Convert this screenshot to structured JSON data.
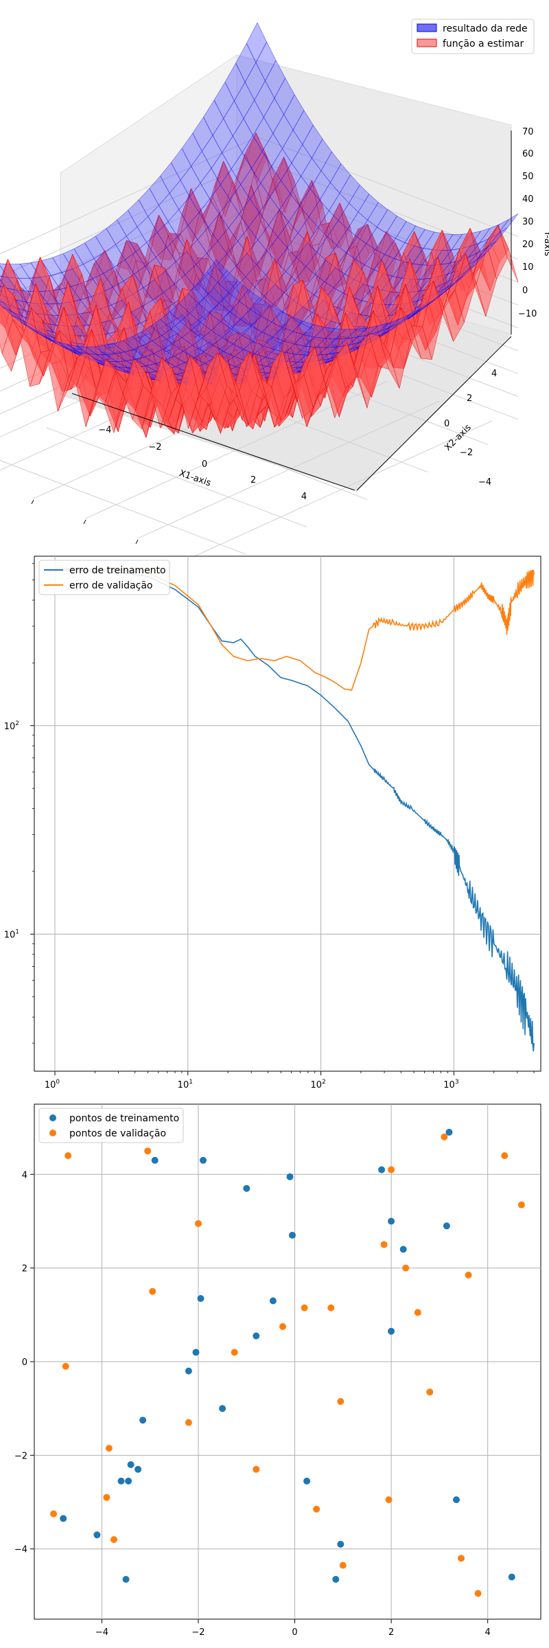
{
  "chart_data": [
    {
      "type": "surface",
      "legend": [
        "resultado da rede",
        "função a estimar"
      ],
      "legend_position": "top-right",
      "xlabel": "X1-axis",
      "ylabel": "X2-axis",
      "zlabel": "Y-axis",
      "xticks": [
        "−4",
        "−2",
        "0",
        "2",
        "4"
      ],
      "yticks": [
        "−4",
        "−2",
        "0",
        "2",
        "4"
      ],
      "zticks": [
        "−10",
        "0",
        "10",
        "20",
        "30",
        "40",
        "50",
        "60",
        "70"
      ],
      "xlim": [
        -5,
        5
      ],
      "ylim": [
        -5,
        5
      ],
      "zlim": [
        -15,
        72
      ],
      "colors": {
        "resultado da rede": "#0000ff",
        "função a estimar": "#ff0000"
      },
      "grid": true
    },
    {
      "type": "line",
      "xscale": "log",
      "yscale": "log",
      "xlim": [
        0.7,
        4500
      ],
      "ylim": [
        2.2,
        650
      ],
      "xticks": [
        1,
        10,
        100,
        1000
      ],
      "yticks": [
        10,
        100
      ],
      "legend_position": "top-left",
      "grid": true,
      "series": [
        {
          "name": "erro de treinamento",
          "color": "#1f77b4",
          "points": [
            [
              1,
              560
            ],
            [
              3,
              545
            ],
            [
              5,
              520
            ],
            [
              8,
              450
            ],
            [
              12,
              370
            ],
            [
              15,
              300
            ],
            [
              18,
              255
            ],
            [
              22,
              250
            ],
            [
              25,
              260
            ],
            [
              28,
              240
            ],
            [
              32,
              215
            ],
            [
              40,
              195
            ],
            [
              50,
              170
            ],
            [
              60,
              165
            ],
            [
              80,
              155
            ],
            [
              100,
              140
            ],
            [
              130,
              120
            ],
            [
              160,
              105
            ],
            [
              200,
              80
            ],
            [
              230,
              65
            ],
            [
              260,
              60
            ],
            [
              300,
              55
            ],
            [
              350,
              50
            ],
            [
              400,
              43
            ],
            [
              480,
              40
            ],
            [
              600,
              35
            ],
            [
              700,
              32
            ],
            [
              800,
              30
            ],
            [
              900,
              28
            ],
            [
              1000,
              25
            ],
            [
              1100,
              21
            ],
            [
              1300,
              16
            ],
            [
              1600,
              12
            ],
            [
              2000,
              9
            ],
            [
              2500,
              7
            ],
            [
              3000,
              5.5
            ],
            [
              3500,
              4.2
            ],
            [
              4000,
              3.0
            ]
          ]
        },
        {
          "name": "erro de validação",
          "color": "#ff7f0e",
          "points": [
            [
              1,
              570
            ],
            [
              3,
              560
            ],
            [
              5,
              540
            ],
            [
              8,
              470
            ],
            [
              12,
              380
            ],
            [
              15,
              300
            ],
            [
              18,
              245
            ],
            [
              22,
              215
            ],
            [
              28,
              205
            ],
            [
              35,
              210
            ],
            [
              45,
              205
            ],
            [
              55,
              215
            ],
            [
              70,
              205
            ],
            [
              90,
              180
            ],
            [
              110,
              170
            ],
            [
              130,
              160
            ],
            [
              150,
              150
            ],
            [
              170,
              148
            ],
            [
              200,
              200
            ],
            [
              230,
              290
            ],
            [
              280,
              320
            ],
            [
              350,
              310
            ],
            [
              450,
              300
            ],
            [
              600,
              300
            ],
            [
              800,
              310
            ],
            [
              1000,
              360
            ],
            [
              1200,
              390
            ],
            [
              1400,
              430
            ],
            [
              1600,
              470
            ],
            [
              1800,
              420
            ],
            [
              2000,
              400
            ],
            [
              2300,
              350
            ],
            [
              2500,
              300
            ],
            [
              2700,
              390
            ],
            [
              3000,
              440
            ],
            [
              3500,
              500
            ],
            [
              4000,
              530
            ]
          ]
        }
      ]
    },
    {
      "type": "scatter",
      "xlim": [
        -5.4,
        5.1
      ],
      "ylim": [
        -5.5,
        5.5
      ],
      "xticks": [
        "−4",
        "−2",
        "0",
        "2",
        "4"
      ],
      "yticks": [
        "−4",
        "−2",
        "0",
        "2",
        "4"
      ],
      "legend_position": "top-left",
      "grid": true,
      "series": [
        {
          "name": "pontos de treinamento",
          "color": "#1f77b4",
          "points": [
            [
              3.2,
              4.9
            ],
            [
              -2.9,
              4.3
            ],
            [
              -1.9,
              4.3
            ],
            [
              -1.0,
              3.7
            ],
            [
              -0.1,
              3.95
            ],
            [
              1.8,
              4.1
            ],
            [
              2.0,
              3.0
            ],
            [
              3.15,
              2.9
            ],
            [
              2.25,
              2.4
            ],
            [
              -0.05,
              2.7
            ],
            [
              -1.95,
              1.35
            ],
            [
              -0.45,
              1.3
            ],
            [
              -0.8,
              0.55
            ],
            [
              -2.05,
              0.2
            ],
            [
              2.0,
              0.65
            ],
            [
              -2.2,
              -0.2
            ],
            [
              -1.5,
              -1.0
            ],
            [
              -3.15,
              -1.25
            ],
            [
              -3.4,
              -2.2
            ],
            [
              -3.25,
              -2.3
            ],
            [
              -3.6,
              -2.55
            ],
            [
              -3.45,
              -2.55
            ],
            [
              0.25,
              -2.55
            ],
            [
              3.35,
              -2.95
            ],
            [
              -4.8,
              -3.35
            ],
            [
              -4.1,
              -3.7
            ],
            [
              0.95,
              -3.9
            ],
            [
              0.85,
              -4.65
            ],
            [
              -3.5,
              -4.65
            ],
            [
              4.5,
              -4.6
            ]
          ]
        },
        {
          "name": "pontos de validação",
          "color": "#ff7f0e",
          "points": [
            [
              -4.7,
              4.4
            ],
            [
              -3.05,
              4.5
            ],
            [
              3.1,
              4.8
            ],
            [
              4.35,
              4.4
            ],
            [
              4.7,
              3.35
            ],
            [
              2.0,
              4.1
            ],
            [
              -2.0,
              2.95
            ],
            [
              1.85,
              2.5
            ],
            [
              2.3,
              2.0
            ],
            [
              3.6,
              1.85
            ],
            [
              -2.95,
              1.5
            ],
            [
              0.2,
              1.15
            ],
            [
              0.75,
              1.15
            ],
            [
              2.55,
              1.05
            ],
            [
              -0.25,
              0.75
            ],
            [
              -1.25,
              0.2
            ],
            [
              -4.75,
              -0.1
            ],
            [
              0.95,
              -0.85
            ],
            [
              2.8,
              -0.65
            ],
            [
              -2.2,
              -1.3
            ],
            [
              -3.85,
              -1.85
            ],
            [
              -0.8,
              -2.3
            ],
            [
              -3.9,
              -2.9
            ],
            [
              1.95,
              -2.95
            ],
            [
              -5.0,
              -3.25
            ],
            [
              0.45,
              -3.15
            ],
            [
              -3.75,
              -3.8
            ],
            [
              1.0,
              -4.35
            ],
            [
              3.45,
              -4.2
            ],
            [
              3.8,
              -4.95
            ]
          ]
        }
      ]
    }
  ]
}
